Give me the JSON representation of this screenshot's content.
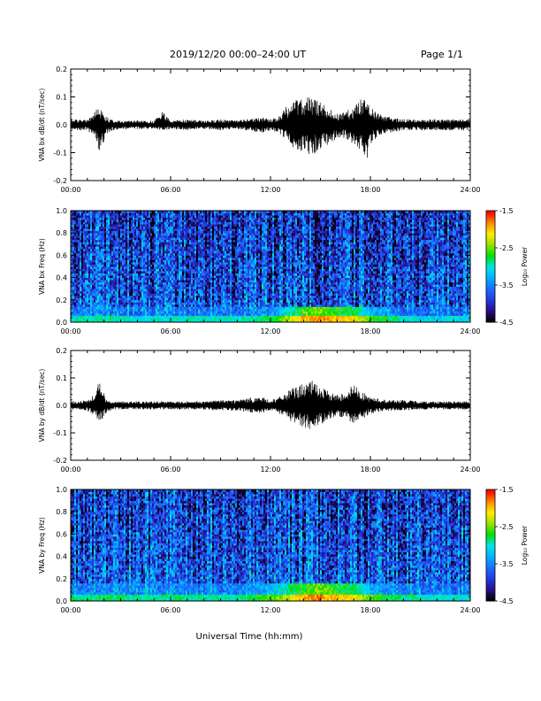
{
  "header": {
    "title": "2019/12/20  00:00–24:00 UT",
    "page": "Page 1/1"
  },
  "colors": {
    "trace": "#000000",
    "colormap": [
      "#000000",
      "#2a0f8a",
      "#1f3de0",
      "#1e6cff",
      "#00b4ff",
      "#00e6e6",
      "#00e000",
      "#9be000",
      "#ffee00",
      "#ff8800",
      "#ff0000"
    ]
  },
  "chart_data": [
    {
      "type": "line",
      "id": "bx-wave",
      "ylabel": "VNA bx dB/dt (nT/sec)",
      "xlim": [
        0,
        24
      ],
      "ylim": [
        -0.2,
        0.2
      ],
      "x_ticks": [
        "00:00",
        "06:00",
        "12:00",
        "18:00",
        "24:00"
      ],
      "y_ticks": [
        "-0.2",
        "-0.1",
        "0.0",
        "0.1",
        "0.2"
      ],
      "y_tick_values": [
        -0.2,
        -0.1,
        0.0,
        0.1,
        0.2
      ],
      "x": [
        0,
        0.5,
        1.0,
        1.5,
        1.7,
        1.9,
        2.1,
        2.5,
        3.0,
        4.0,
        5.0,
        5.5,
        6.0,
        7.0,
        8.0,
        9.0,
        10.0,
        11.0,
        11.5,
        12.0,
        12.5,
        13.0,
        13.5,
        14.0,
        14.5,
        15.0,
        15.5,
        16.0,
        16.5,
        17.0,
        17.5,
        17.8,
        18.0,
        18.5,
        19.0,
        20.0,
        21.0,
        22.0,
        23.0,
        24.0
      ],
      "upper": [
        0.02,
        0.02,
        0.02,
        0.05,
        0.07,
        0.06,
        0.03,
        0.02,
        0.015,
        0.015,
        0.015,
        0.05,
        0.015,
        0.02,
        0.015,
        0.02,
        0.015,
        0.025,
        0.03,
        0.02,
        0.03,
        0.07,
        0.09,
        0.1,
        0.1,
        0.08,
        0.06,
        0.04,
        0.05,
        0.06,
        0.1,
        0.14,
        0.07,
        0.04,
        0.03,
        0.02,
        0.02,
        0.02,
        0.02,
        0.02
      ],
      "lower": [
        -0.02,
        -0.02,
        -0.02,
        -0.05,
        -0.11,
        -0.08,
        -0.04,
        -0.02,
        -0.015,
        -0.015,
        -0.015,
        -0.02,
        -0.015,
        -0.02,
        -0.015,
        -0.02,
        -0.015,
        -0.025,
        -0.03,
        -0.02,
        -0.03,
        -0.06,
        -0.09,
        -0.1,
        -0.11,
        -0.09,
        -0.07,
        -0.05,
        -0.05,
        -0.07,
        -0.11,
        -0.14,
        -0.07,
        -0.04,
        -0.03,
        -0.02,
        -0.02,
        -0.02,
        -0.02,
        -0.02
      ]
    },
    {
      "type": "heatmap",
      "id": "bx-spec",
      "ylabel": "VNA bx Freq (Hz)",
      "colorbar_label": "Log₁₀ Power",
      "xlim": [
        0,
        24
      ],
      "ylim": [
        0.0,
        1.0
      ],
      "clim": [
        -4.5,
        -1.5
      ],
      "x_ticks": [
        "00:00",
        "06:00",
        "12:00",
        "18:00",
        "24:00"
      ],
      "y_ticks": [
        "0.0",
        "0.2",
        "0.4",
        "0.6",
        "0.8",
        "1.0"
      ],
      "y_tick_values": [
        0,
        0.2,
        0.4,
        0.6,
        0.8,
        1.0
      ],
      "colorbar_ticks": [
        "-1.5",
        "-2.5",
        "-3.5",
        "-4.5"
      ],
      "colorbar_tick_values": [
        -1.5,
        -2.5,
        -3.5,
        -4.5
      ],
      "background_level": -3.7,
      "low_freq_band": {
        "freq_max": 0.06,
        "x": [
          0,
          2,
          4,
          6,
          8,
          10,
          12,
          13,
          14,
          15,
          16,
          17,
          18,
          20,
          22,
          24
        ],
        "level": [
          -3.0,
          -2.9,
          -3.1,
          -3.0,
          -3.0,
          -3.0,
          -2.8,
          -2.4,
          -1.9,
          -1.8,
          -2.0,
          -2.1,
          -2.6,
          -3.0,
          -3.1,
          -3.1
        ]
      }
    },
    {
      "type": "line",
      "id": "by-wave",
      "ylabel": "VNA by dB/dt (nT/sec)",
      "xlim": [
        0,
        24
      ],
      "ylim": [
        -0.2,
        0.2
      ],
      "x_ticks": [
        "00:00",
        "06:00",
        "12:00",
        "18:00",
        "24:00"
      ],
      "y_ticks": [
        "-0.2",
        "-0.1",
        "0.0",
        "0.1",
        "0.2"
      ],
      "y_tick_values": [
        -0.2,
        -0.1,
        0.0,
        0.1,
        0.2
      ],
      "x": [
        0,
        0.5,
        1.0,
        1.5,
        1.7,
        1.9,
        2.1,
        2.5,
        3.0,
        4.0,
        5.0,
        6.0,
        7.0,
        8.0,
        9.0,
        10.0,
        11.0,
        11.5,
        12.0,
        12.5,
        13.0,
        13.5,
        14.0,
        14.5,
        15.0,
        15.5,
        16.0,
        16.5,
        17.0,
        17.5,
        18.0,
        18.5,
        19.0,
        20.0,
        21.0,
        22.0,
        23.0,
        24.0
      ],
      "upper": [
        0.015,
        0.015,
        0.02,
        0.05,
        0.09,
        0.07,
        0.03,
        0.015,
        0.015,
        0.015,
        0.015,
        0.015,
        0.015,
        0.015,
        0.02,
        0.02,
        0.03,
        0.03,
        0.02,
        0.03,
        0.05,
        0.07,
        0.08,
        0.09,
        0.07,
        0.05,
        0.04,
        0.05,
        0.08,
        0.05,
        0.03,
        0.025,
        0.02,
        0.02,
        0.015,
        0.015,
        0.015,
        0.015
      ],
      "lower": [
        -0.015,
        -0.015,
        -0.02,
        -0.04,
        -0.07,
        -0.05,
        -0.03,
        -0.015,
        -0.015,
        -0.015,
        -0.015,
        -0.015,
        -0.015,
        -0.015,
        -0.02,
        -0.02,
        -0.03,
        -0.03,
        -0.02,
        -0.03,
        -0.05,
        -0.07,
        -0.08,
        -0.09,
        -0.07,
        -0.05,
        -0.04,
        -0.05,
        -0.07,
        -0.05,
        -0.03,
        -0.025,
        -0.02,
        -0.02,
        -0.015,
        -0.015,
        -0.015,
        -0.015
      ]
    },
    {
      "type": "heatmap",
      "id": "by-spec",
      "ylabel": "VNA by Freq (Hz)",
      "colorbar_label": "Log₁₀ Power",
      "xlim": [
        0,
        24
      ],
      "ylim": [
        0.0,
        1.0
      ],
      "clim": [
        -4.5,
        -1.5
      ],
      "x_ticks": [
        "00:00",
        "06:00",
        "12:00",
        "18:00",
        "24:00"
      ],
      "y_ticks": [
        "0.0",
        "0.2",
        "0.4",
        "0.6",
        "0.8",
        "1.0"
      ],
      "y_tick_values": [
        0,
        0.2,
        0.4,
        0.6,
        0.8,
        1.0
      ],
      "colorbar_ticks": [
        "-1.5",
        "-2.5",
        "-3.5",
        "-4.5"
      ],
      "colorbar_tick_values": [
        -1.5,
        -2.5,
        -3.5,
        -4.5
      ],
      "background_level": -3.65,
      "low_freq_band": {
        "freq_max": 0.07,
        "x": [
          0,
          2,
          4,
          6,
          8,
          10,
          12,
          13,
          14,
          15,
          16,
          17,
          18,
          20,
          22,
          24
        ],
        "level": [
          -2.9,
          -2.8,
          -2.9,
          -2.9,
          -2.9,
          -2.9,
          -2.6,
          -2.3,
          -1.9,
          -1.8,
          -2.0,
          -2.1,
          -2.6,
          -2.9,
          -3.0,
          -3.0
        ]
      }
    }
  ],
  "xlabel": "Universal Time (hh:mm)"
}
